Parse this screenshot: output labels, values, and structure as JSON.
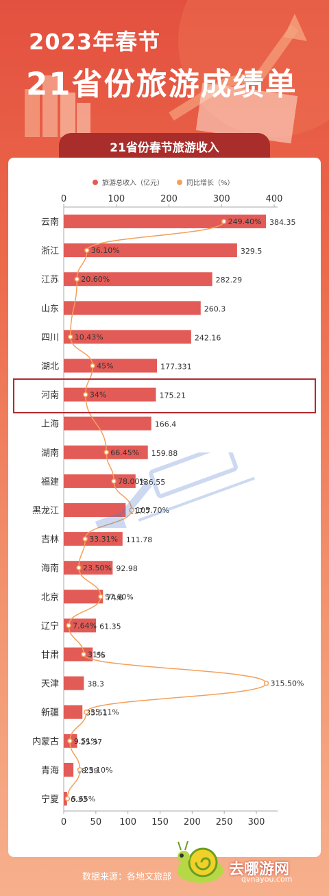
{
  "header": {
    "title_line1": "2023年春节",
    "title_line2": "21省份旅游成绩单"
  },
  "banner": "21省份春节旅游收入",
  "footer": {
    "source": "数据来源：各地文旅部",
    "brand": "去哪游网",
    "brand_url": "qvnayou.com"
  },
  "colors": {
    "bar": "#e25b57",
    "line": "#f3a05a",
    "highlight_box": "#b3292e",
    "background": "#e3503f"
  },
  "chart_data": {
    "type": "bar",
    "orientation": "horizontal",
    "categories": [
      "云南",
      "浙江",
      "江苏",
      "山东",
      "四川",
      "湖北",
      "河南",
      "上海",
      "湖南",
      "福建",
      "黑龙江",
      "吉林",
      "海南",
      "北京",
      "辽宁",
      "甘肃",
      "天津",
      "新疆",
      "内蒙古",
      "青海",
      "宁夏"
    ],
    "series": [
      {
        "name": "旅游总收入（亿元）",
        "type": "bar",
        "values": [
          384.35,
          329.5,
          282.29,
          260.3,
          242.16,
          177.331,
          175.21,
          166.4,
          159.88,
          136.55,
          117.7,
          111.78,
          92.98,
          74.6,
          61.35,
          55,
          38.3,
          35.51,
          25.37,
          18.39,
          6.33
        ],
        "labels": [
          "384.35",
          "329.5",
          "282.29",
          "260.3",
          "242.16",
          "177.331",
          "175.21",
          "166.4",
          "159.88",
          "136.55",
          "117.7",
          "111.78",
          "92.98",
          "74.6",
          "61.35",
          "55",
          "38.3",
          "35.51",
          "25.37",
          "18.39",
          "6.33"
        ]
      },
      {
        "name": "同比增长（%）",
        "type": "line",
        "values": [
          249.4,
          36.1,
          20.6,
          null,
          10.43,
          45,
          34,
          null,
          66.45,
          78.0,
          105.7,
          33.31,
          23.5,
          57.6,
          7.64,
          31,
          315.5,
          35.11,
          9.51,
          25.1,
          5.65
        ],
        "labels": [
          "249.40%",
          "36.10%",
          "20.60%",
          "",
          "10.43%",
          "45%",
          "34%",
          "",
          "66.45%",
          "78.00%",
          "105.70%",
          "33.31%",
          "23.50%",
          "57.60%",
          "7.64%",
          "31%",
          "315.50%",
          "35.11%",
          "9.51%",
          "25.10%",
          "5.65%"
        ]
      }
    ],
    "top_axis": {
      "ticks": [
        0,
        100,
        200,
        300,
        400
      ],
      "range": [
        0,
        400
      ]
    },
    "bottom_axis": {
      "ticks": [
        0,
        50,
        100,
        150,
        200,
        250,
        300
      ],
      "range": [
        0,
        333
      ]
    },
    "legend_position": "top",
    "highlighted_category": "河南"
  }
}
